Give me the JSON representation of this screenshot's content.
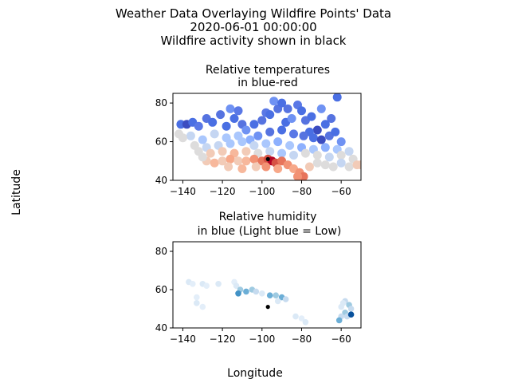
{
  "figure": {
    "title_lines": [
      "Weather Data Overlaying Wildfire Points' Data",
      "2020-06-01 00:00:00",
      "Wildfire activity shown in black"
    ],
    "xlabel": "Longitude",
    "ylabel": "Latitude"
  },
  "chart_data": [
    {
      "type": "scatter",
      "title_lines": [
        "Relative temperatures",
        "in blue-red"
      ],
      "xlim": [
        -145,
        -50
      ],
      "ylim": [
        40,
        85
      ],
      "xticks": [
        -140,
        -120,
        -100,
        -80,
        -60
      ],
      "yticks": [
        40,
        60,
        80
      ],
      "xtick_labels": [
        "−140",
        "−120",
        "−100",
        "−80",
        "−60"
      ],
      "ytick_labels": [
        "40",
        "60",
        "80"
      ],
      "colormap": "coolwarm (blue = low, red = high)",
      "grid": false,
      "series": [
        {
          "points": [
            [
              -141,
              69,
              "#4a6fe3"
            ],
            [
              -138,
              69,
              "#3b4cc0"
            ],
            [
              -135,
              70,
              "#4a6fe3"
            ],
            [
              -132,
              68,
              "#5a78e6"
            ],
            [
              -128,
              72,
              "#5673e0"
            ],
            [
              -125,
              70,
              "#4a6fe3"
            ],
            [
              -121,
              74,
              "#5673e0"
            ],
            [
              -118,
              68,
              "#4a6fe3"
            ],
            [
              -116,
              77,
              "#6f92f3"
            ],
            [
              -112,
              76,
              "#5a78e6"
            ],
            [
              -114,
              72,
              "#4a6fe3"
            ],
            [
              -110,
              69,
              "#5673e0"
            ],
            [
              -108,
              66,
              "#6f92f3"
            ],
            [
              -104,
              69,
              "#4a6fe3"
            ],
            [
              -100,
              71,
              "#5673e0"
            ],
            [
              -98,
              75,
              "#5a78e6"
            ],
            [
              -96,
              74,
              "#4a6fe3"
            ],
            [
              -94,
              81,
              "#6f92f3"
            ],
            [
              -92,
              77,
              "#5673e0"
            ],
            [
              -90,
              80,
              "#4a6fe3"
            ],
            [
              -87,
              77,
              "#5673e0"
            ],
            [
              -88,
              70,
              "#4a6fe3"
            ],
            [
              -85,
              72,
              "#6f92f3"
            ],
            [
              -82,
              79,
              "#5a78e6"
            ],
            [
              -80,
              76,
              "#4a6fe3"
            ],
            [
              -78,
              71,
              "#5673e0"
            ],
            [
              -75,
              73,
              "#4a6fe3"
            ],
            [
              -70,
              77,
              "#6f92f3"
            ],
            [
              -65,
              72,
              "#5673e0"
            ],
            [
              -62,
              83,
              "#4a6fe3"
            ],
            [
              -68,
              69,
              "#4a6fe3"
            ],
            [
              -72,
              66,
              "#3b4cc0"
            ],
            [
              -76,
              65,
              "#4a6fe3"
            ],
            [
              -79,
              63,
              "#5673e0"
            ],
            [
              -74,
              62,
              "#4a6fe3"
            ],
            [
              -70,
              61,
              "#3b4cc0"
            ],
            [
              -66,
              63,
              "#5673e0"
            ],
            [
              -63,
              65,
              "#4a6fe3"
            ],
            [
              -60,
              60,
              "#6f92f3"
            ],
            [
              -84,
              64,
              "#5a78e6"
            ],
            [
              -90,
              66,
              "#4a6fe3"
            ],
            [
              -96,
              65,
              "#5673e0"
            ],
            [
              -102,
              63,
              "#6f92f3"
            ],
            [
              -106,
              61,
              "#8db0fe"
            ],
            [
              -112,
              63,
              "#aac7fd"
            ],
            [
              -118,
              62,
              "#aac7fd"
            ],
            [
              -124,
              64,
              "#c5d6f2"
            ],
            [
              -130,
              61,
              "#aac7fd"
            ],
            [
              -136,
              63,
              "#c5d6f2"
            ],
            [
              -140,
              62,
              "#dddcdc"
            ],
            [
              -142,
              64,
              "#dddcdc"
            ],
            [
              -134,
              58,
              "#dddcdc"
            ],
            [
              -128,
              57,
              "#c5d6f2"
            ],
            [
              -122,
              58,
              "#c5d6f2"
            ],
            [
              -116,
              59,
              "#aac7fd"
            ],
            [
              -110,
              60,
              "#aac7fd"
            ],
            [
              -104,
              58,
              "#c5d6f2"
            ],
            [
              -98,
              59,
              "#aac7fd"
            ],
            [
              -92,
              60,
              "#8db0fe"
            ],
            [
              -86,
              58,
              "#aac7fd"
            ],
            [
              -80,
              57,
              "#8db0fe"
            ],
            [
              -74,
              56,
              "#aac7fd"
            ],
            [
              -68,
              57,
              "#8db0fe"
            ],
            [
              -62,
              56,
              "#aac7fd"
            ],
            [
              -56,
              55,
              "#c5d6f2"
            ],
            [
              -132,
              55,
              "#dddcdc"
            ],
            [
              -126,
              54,
              "#f2cbb7"
            ],
            [
              -120,
              55,
              "#f2cbb7"
            ],
            [
              -114,
              54,
              "#f7b89c"
            ],
            [
              -108,
              55,
              "#f2cbb7"
            ],
            [
              -102,
              54,
              "#dddcdc"
            ],
            [
              -96,
              55,
              "#c5d6f2"
            ],
            [
              -90,
              54,
              "#aac7fd"
            ],
            [
              -84,
              53,
              "#c5d6f2"
            ],
            [
              -78,
              54,
              "#dddcdc"
            ],
            [
              -72,
              53,
              "#dddcdc"
            ],
            [
              -66,
              52,
              "#c5d6f2"
            ],
            [
              -60,
              53,
              "#dddcdc"
            ],
            [
              -54,
              51,
              "#dddcdc"
            ],
            [
              -50,
              48,
              "#f2cbb7"
            ],
            [
              -128,
              50,
              "#f2cbb7"
            ],
            [
              -124,
              49,
              "#f7b89c"
            ],
            [
              -120,
              50,
              "#f2cbb7"
            ],
            [
              -116,
              51,
              "#f7a889"
            ],
            [
              -112,
              50,
              "#f2cbb7"
            ],
            [
              -108,
              50,
              "#f7b89c"
            ],
            [
              -104,
              51,
              "#f29274"
            ],
            [
              -100,
              50,
              "#e7745b"
            ],
            [
              -97,
              51,
              "#d65244"
            ],
            [
              -95,
              50,
              "#b40426"
            ],
            [
              -93,
              49,
              "#d65244"
            ],
            [
              -90,
              50,
              "#e7745b"
            ],
            [
              -87,
              48,
              "#f29274"
            ],
            [
              -84,
              46,
              "#f7a889"
            ],
            [
              -81,
              44,
              "#f29274"
            ],
            [
              -79,
              42,
              "#e7745b"
            ],
            [
              -82,
              42,
              "#f29274"
            ],
            [
              -76,
              47,
              "#f2cbb7"
            ],
            [
              -72,
              49,
              "#dddcdc"
            ],
            [
              -68,
              48,
              "#dddcdc"
            ],
            [
              -64,
              47,
              "#dddcdc"
            ],
            [
              -60,
              49,
              "#c5d6f2"
            ],
            [
              -56,
              47,
              "#dddcdc"
            ],
            [
              -52,
              48,
              "#f2cbb7"
            ],
            [
              -130,
              52,
              "#dddcdc"
            ],
            [
              -117,
              47,
              "#f2cbb7"
            ],
            [
              -110,
              46,
              "#f7b89c"
            ],
            [
              -103,
              47,
              "#f2cbb7"
            ],
            [
              -98,
              47,
              "#f29274"
            ],
            [
              -92,
              46,
              "#f7a889"
            ]
          ]
        },
        {
          "name": "Wildfire",
          "color": "#000000",
          "points": [
            [
              -97,
              51
            ]
          ]
        }
      ]
    },
    {
      "type": "scatter",
      "title_lines": [
        "Relative humidity",
        "in blue (Light blue = Low)"
      ],
      "xlim": [
        -145,
        -50
      ],
      "ylim": [
        40,
        85
      ],
      "xticks": [
        -140,
        -120,
        -100,
        -80,
        -60
      ],
      "yticks": [
        40,
        60,
        80
      ],
      "xtick_labels": [
        "−140",
        "−120",
        "−100",
        "−80",
        "−60"
      ],
      "ytick_labels": [
        "40",
        "60",
        "80"
      ],
      "colormap": "Blues (light = low, dark = high)",
      "grid": false,
      "series": [
        {
          "points": [
            [
              -137,
              64,
              "#dbe9f6"
            ],
            [
              -135,
              63,
              "#e3eef9"
            ],
            [
              -130,
              63,
              "#dbe9f6"
            ],
            [
              -128,
              62,
              "#e3eef9"
            ],
            [
              -122,
              63,
              "#dbe9f6"
            ],
            [
              -114,
              64,
              "#e3eef9"
            ],
            [
              -113,
              62,
              "#dbe9f6"
            ],
            [
              -111,
              60,
              "#9ecae1"
            ],
            [
              -108,
              59,
              "#6baed6"
            ],
            [
              -105,
              60,
              "#9ecae1"
            ],
            [
              -103,
              59,
              "#c6dbef"
            ],
            [
              -100,
              58,
              "#dbe9f6"
            ],
            [
              -96,
              57,
              "#6baed6"
            ],
            [
              -93,
              57,
              "#9ecae1"
            ],
            [
              -90,
              56,
              "#6baed6"
            ],
            [
              -88,
              55,
              "#c6dbef"
            ],
            [
              -92,
              54,
              "#dbe9f6"
            ],
            [
              -112,
              58,
              "#4292c6"
            ],
            [
              -133,
              56,
              "#e3eef9"
            ],
            [
              -133,
              53,
              "#dbe9f6"
            ],
            [
              -130,
              51,
              "#e3eef9"
            ],
            [
              -83,
              46,
              "#dbe9f6"
            ],
            [
              -80,
              45,
              "#e3eef9"
            ],
            [
              -78,
              43,
              "#dbe9f6"
            ],
            [
              -58,
              54,
              "#c6dbef"
            ],
            [
              -56,
              52,
              "#9ecae1"
            ],
            [
              -55,
              50,
              "#c6dbef"
            ],
            [
              -60,
              51,
              "#dbe9f6"
            ],
            [
              -58,
              48,
              "#9ecae1"
            ],
            [
              -60,
              46,
              "#c6dbef"
            ],
            [
              -61,
              44,
              "#6baed6"
            ],
            [
              -57,
              46,
              "#c6dbef"
            ],
            [
              -55,
              47,
              "#08519c"
            ],
            [
              -59,
              53,
              "#dbe9f6"
            ]
          ]
        },
        {
          "name": "Wildfire",
          "color": "#000000",
          "points": [
            [
              -97,
              51
            ]
          ]
        }
      ]
    }
  ]
}
